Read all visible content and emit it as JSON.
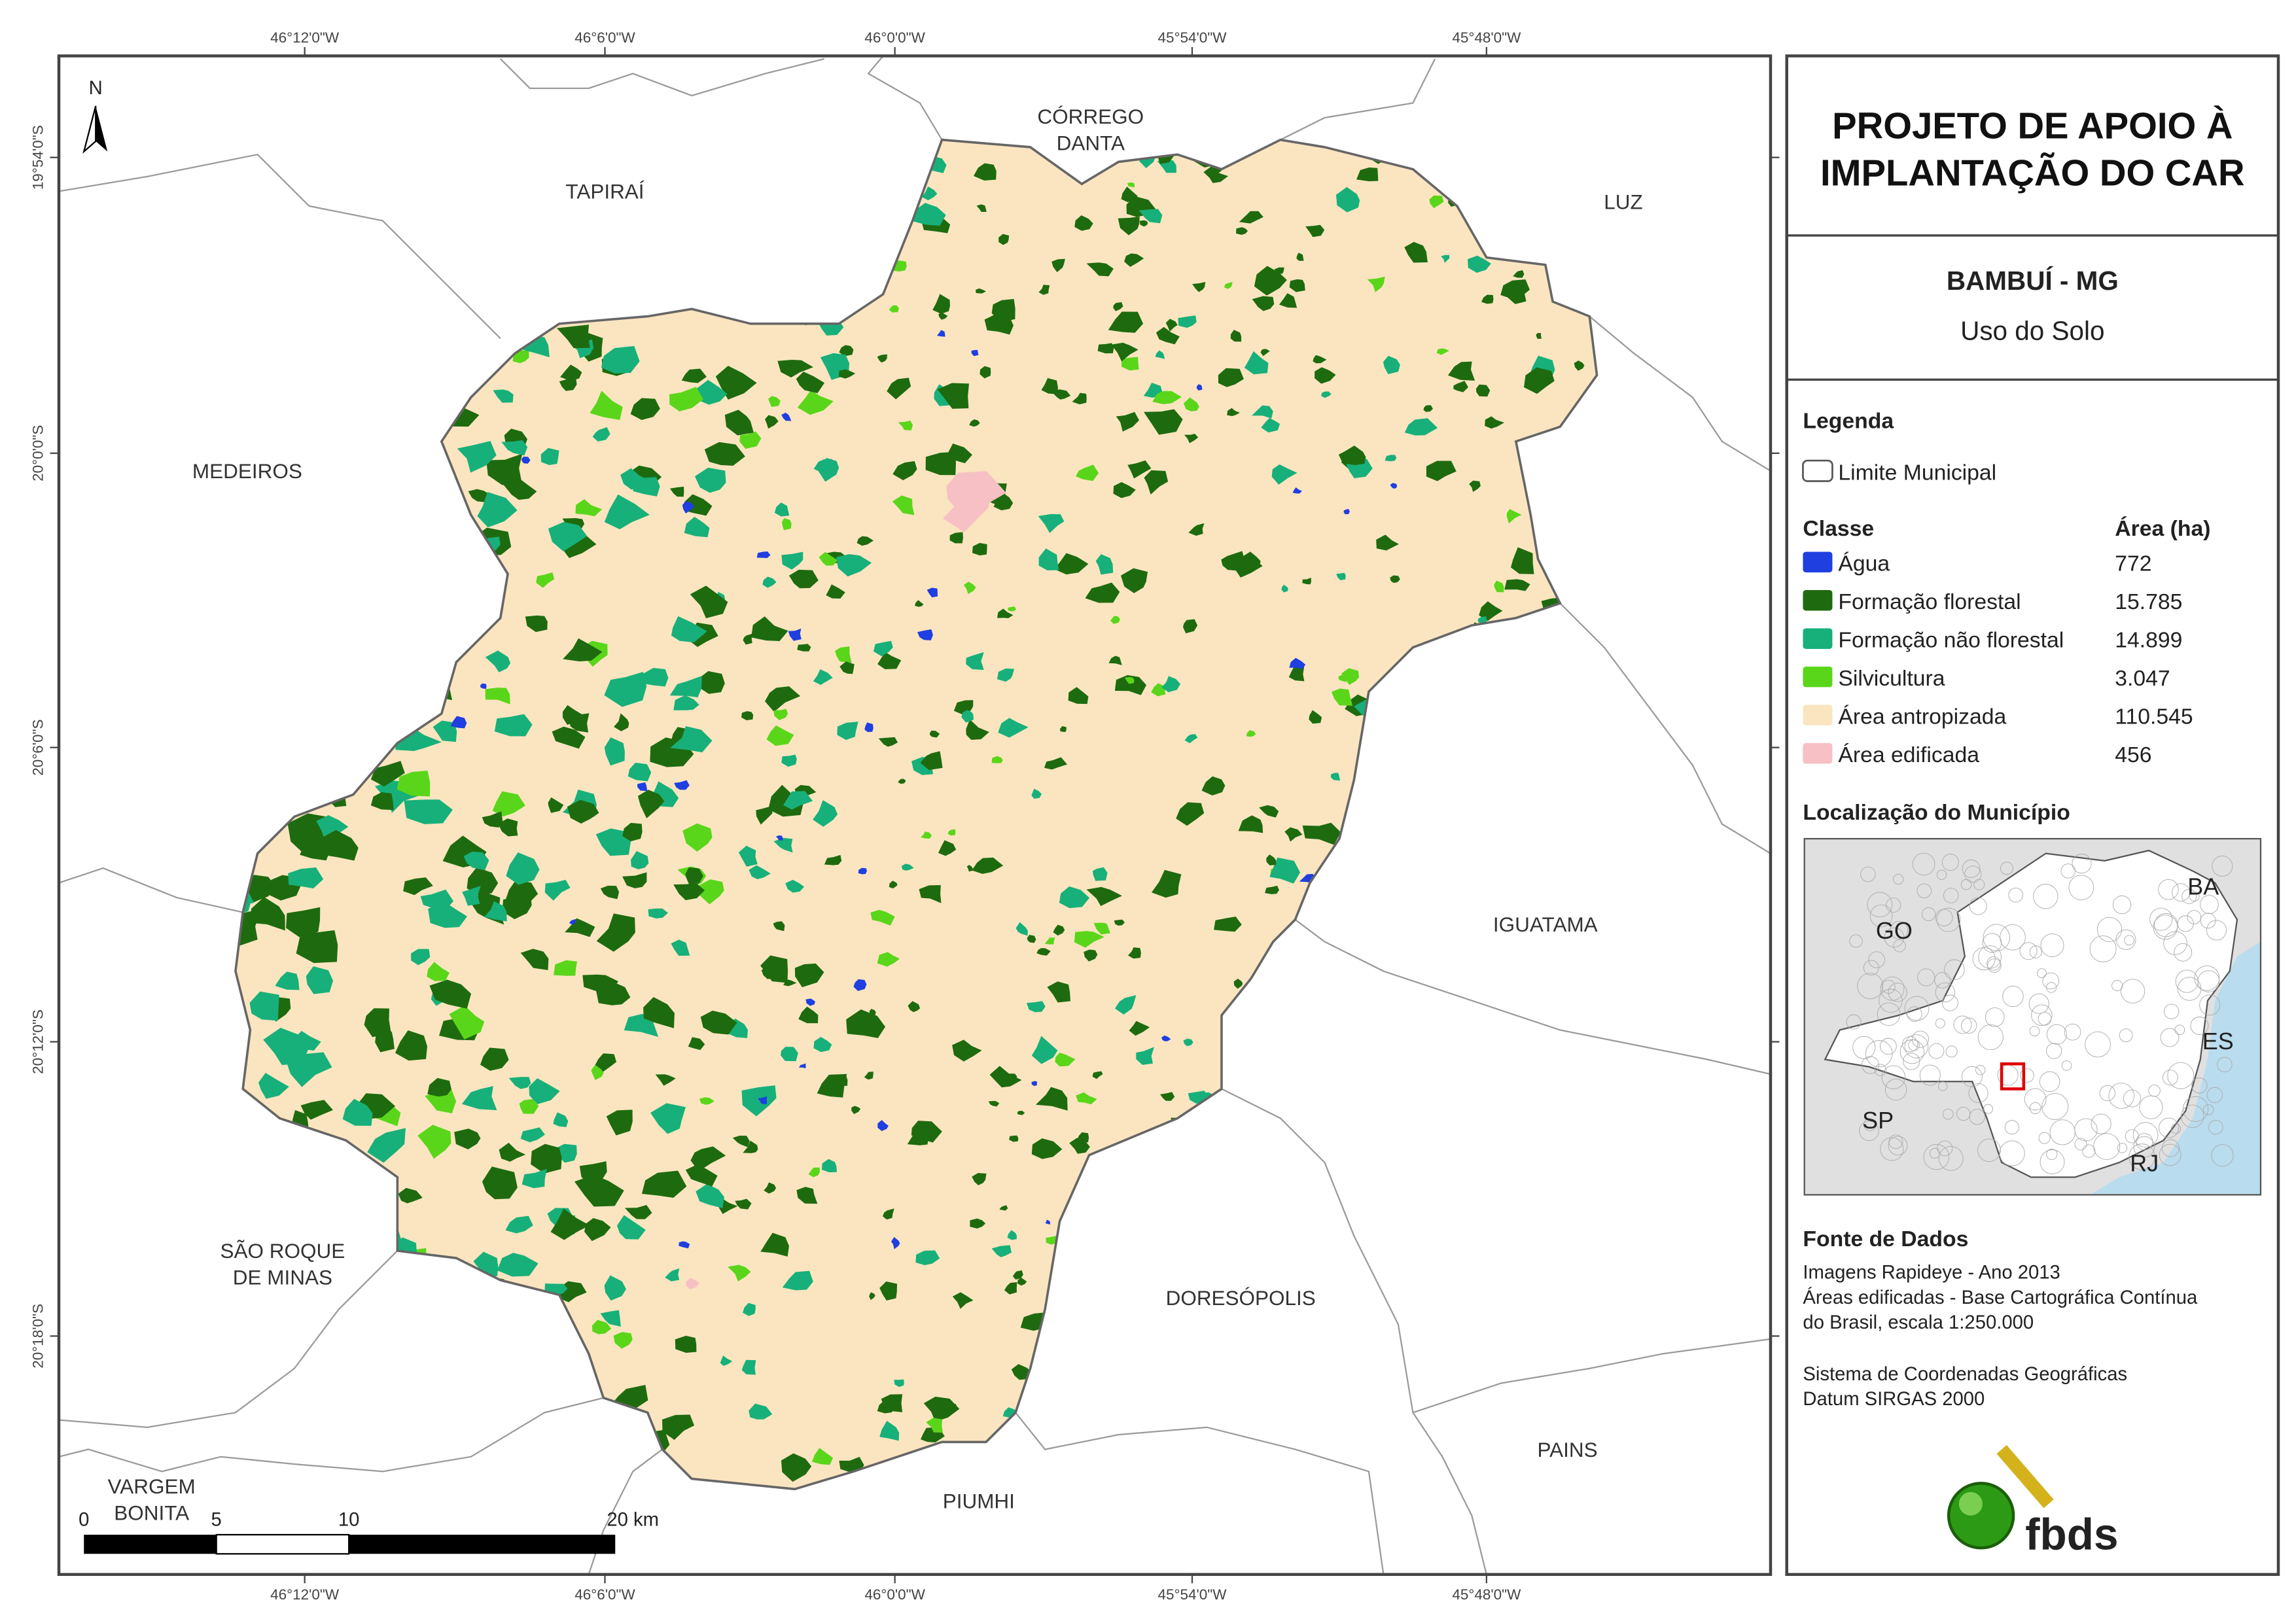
{
  "header": {
    "title": [
      "PROJETO DE APOIO À",
      "IMPLANTAÇÃO DO CAR"
    ],
    "municipality": "BAMBUÍ - MG",
    "subtitle": "Uso do Solo"
  },
  "map": {
    "north": "N",
    "lon_labels": [
      "46°12'0\"W",
      "46°6'0\"W",
      "46°0'0\"W",
      "45°54'0\"W",
      "45°48'0\"W"
    ],
    "lat_labels": [
      "19°54'0\"S",
      "20°0'0\"S",
      "20°6'0\"S",
      "20°12'0\"S",
      "20°18'0\"S"
    ],
    "places": [
      {
        "name": [
          "TAPIRAÍ"
        ]
      },
      {
        "name": [
          "CÓRREGO",
          "DANTA"
        ]
      },
      {
        "name": [
          "LUZ"
        ]
      },
      {
        "name": [
          "MEDEIROS"
        ]
      },
      {
        "name": [
          "IGUATAMA"
        ]
      },
      {
        "name": [
          "SÃO ROQUE",
          "DE MINAS"
        ]
      },
      {
        "name": [
          "DORESÓPOLIS"
        ]
      },
      {
        "name": [
          "PAINS"
        ]
      },
      {
        "name": [
          "VARGEM",
          "BONITA"
        ]
      },
      {
        "name": [
          "PIUMHI"
        ]
      }
    ],
    "scale": [
      "0",
      "5",
      "10",
      "20 km"
    ]
  },
  "legend": {
    "title": "Legenda",
    "boundary": "Limite Municipal",
    "class_header": "Classe",
    "area_header": "Área (ha)",
    "classes": [
      {
        "label": "Água",
        "area": "772",
        "color": "#1f3fe0"
      },
      {
        "label": "Formação florestal",
        "area": "15.785",
        "color": "#1e6b0f"
      },
      {
        "label": "Formação não florestal",
        "area": "14.899",
        "color": "#17b07a"
      },
      {
        "label": "Silvicultura",
        "area": "3.047",
        "color": "#5ad61a"
      },
      {
        "label": "Área antropizada",
        "area": "110.545",
        "color": "#fbe5c0"
      },
      {
        "label": "Área edificada",
        "area": "456",
        "color": "#f7c0c4"
      }
    ]
  },
  "location": {
    "title": "Localização do Município",
    "states": [
      "GO",
      "BA",
      "ES",
      "SP",
      "RJ"
    ]
  },
  "sources": {
    "title": "Fonte de Dados",
    "lines": [
      "Imagens Rapideye - Ano 2013",
      "Áreas edificadas - Base Cartográfica Contínua",
      "do Brasil, escala 1:250.000",
      "Sistema de Coordenadas Geográficas",
      "Datum SIRGAS 2000"
    ]
  },
  "logo": "fbds"
}
